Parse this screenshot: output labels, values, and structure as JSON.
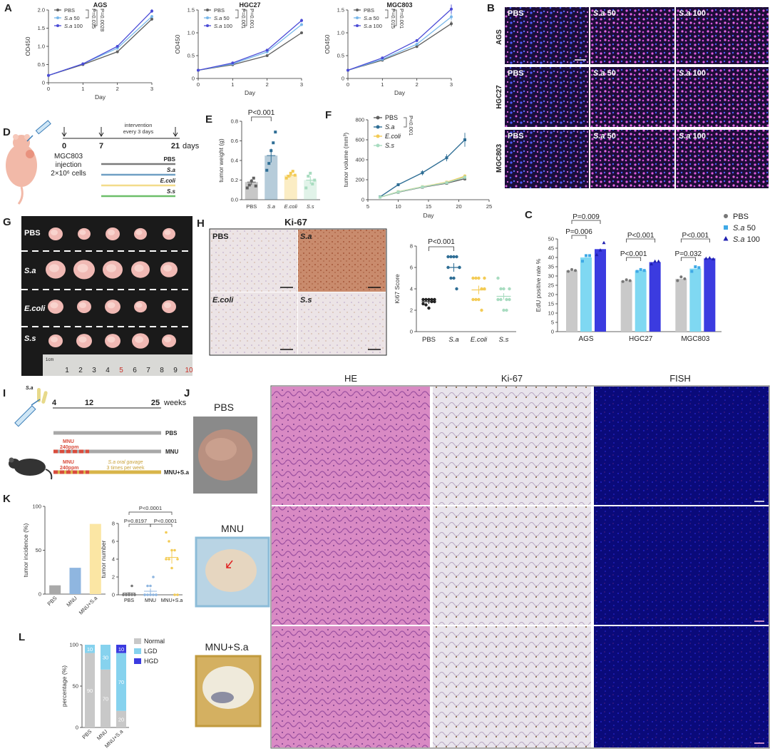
{
  "panels": {
    "A": "A",
    "B": "B",
    "C": "C",
    "D": "D",
    "E": "E",
    "F": "F",
    "G": "G",
    "H": "H",
    "I": "I",
    "J": "J",
    "K": "K",
    "L": "L"
  },
  "colors": {
    "pbs": "#5f5f5f",
    "sa50": "#77b7ea",
    "sa100": "#4b4bd6",
    "sa_teal": "#2f6e95",
    "ecoli": "#f3cb55",
    "ss": "#a8dcc0",
    "c_pbs": "#c9c9c9",
    "c_sa50": "#7fd8f2",
    "c_sa100": "#3b3be0",
    "normal": "#c8c8c8",
    "lgd": "#86d2ee",
    "hgd": "#3b3be0"
  },
  "panelA": {
    "ylabel": "OD450",
    "xlabel": "Day",
    "legend": [
      {
        "pre": "PBS",
        "it": "",
        "post": ""
      },
      {
        "pre": "",
        "it": "S.a",
        "post": " 50"
      },
      {
        "pre": "",
        "it": "S.a",
        "post": " 100"
      }
    ]
  },
  "panelB": {
    "rows": [
      "AGS",
      "HGC27",
      "MGC803"
    ],
    "cols": [
      {
        "pre": "PBS",
        "it": "",
        "post": ""
      },
      {
        "pre": "",
        "it": "S.a",
        "post": " 50"
      },
      {
        "pre": "",
        "it": "S.a",
        "post": " 100"
      }
    ]
  },
  "panelD": {
    "timepoints": [
      "0",
      "7",
      "21"
    ],
    "days_label": "days",
    "intervention": [
      "intervention",
      "every 3 days"
    ],
    "cells": [
      "MGC803",
      "injection",
      "2×10⁶ cells"
    ],
    "groups": [
      "PBS",
      "S.a",
      "E.coli",
      "S.s"
    ]
  },
  "panelG": {
    "groups": [
      "PBS",
      "S.a",
      "E.coli",
      "S.s"
    ],
    "ruler": [
      "1",
      "2",
      "3",
      "4",
      "5",
      "6",
      "7",
      "8",
      "9",
      "10"
    ],
    "ruler_unit": "1cm"
  },
  "panelH": {
    "title": "Ki-67",
    "images": [
      "PBS",
      "S.a",
      "E.coli",
      "S.s"
    ]
  },
  "panelI": {
    "weeks": [
      "4",
      "12",
      "25"
    ],
    "weeks_label": "weeks",
    "mnu": [
      "MNU",
      "240ppm"
    ],
    "gavage": [
      "S.a oral gavage",
      "3 times per week"
    ],
    "bars": [
      "PBS",
      "MNU",
      "MNU+S.a"
    ],
    "bug": "S.a"
  },
  "panelJ": {
    "columns": [
      "HE",
      "Ki-67",
      "FISH"
    ],
    "rows": [
      "PBS",
      "MNU",
      "MNU+S.a"
    ]
  },
  "chart_data": [
    {
      "id": "A-AGS",
      "type": "line",
      "title": "AGS",
      "xlabel": "Day",
      "ylabel": "OD450",
      "x": [
        0,
        1,
        2,
        3
      ],
      "xlim": [
        0,
        3
      ],
      "ylim": [
        0,
        2.0
      ],
      "yticks": [
        "0",
        "0.5",
        "1.0",
        "1.5",
        "2.0"
      ],
      "xticks": [
        "0",
        "1",
        "2",
        "3"
      ],
      "series": [
        {
          "name": "PBS",
          "values": [
            0.2,
            0.5,
            0.85,
            1.75
          ],
          "err": [
            0.01,
            0.02,
            0.03,
            0.05
          ]
        },
        {
          "name": "S.a 50",
          "values": [
            0.2,
            0.52,
            0.95,
            1.82
          ],
          "err": [
            0.01,
            0.02,
            0.04,
            0.04
          ]
        },
        {
          "name": "S.a 100",
          "values": [
            0.2,
            0.52,
            1.0,
            1.97
          ],
          "err": [
            0.01,
            0.02,
            0.03,
            0.05
          ]
        }
      ],
      "annotations": [
        "P=0.035",
        "P=0.0028"
      ]
    },
    {
      "id": "A-HGC27",
      "type": "line",
      "title": "HGC27",
      "xlabel": "Day",
      "ylabel": "OD450",
      "x": [
        0,
        1,
        2,
        3
      ],
      "xlim": [
        0,
        3
      ],
      "ylim": [
        0,
        1.5
      ],
      "yticks": [
        "0",
        "0.5",
        "1.0",
        "1.5"
      ],
      "xticks": [
        "0",
        "1",
        "2",
        "3"
      ],
      "series": [
        {
          "name": "PBS",
          "values": [
            0.18,
            0.3,
            0.5,
            1.0
          ],
          "err": [
            0.01,
            0.01,
            0.02,
            0.02
          ]
        },
        {
          "name": "S.a 50",
          "values": [
            0.18,
            0.32,
            0.58,
            1.18
          ],
          "err": [
            0.01,
            0.01,
            0.02,
            0.03
          ]
        },
        {
          "name": "S.a 100",
          "values": [
            0.18,
            0.34,
            0.62,
            1.27
          ],
          "err": [
            0.01,
            0.01,
            0.02,
            0.04
          ]
        }
      ],
      "annotations": [
        "P=0.001",
        "P=0.001"
      ]
    },
    {
      "id": "A-MGC803",
      "type": "line",
      "title": "MGC803",
      "xlabel": "Day",
      "ylabel": "OD450",
      "x": [
        0,
        1,
        2,
        3
      ],
      "xlim": [
        0,
        3
      ],
      "ylim": [
        0,
        1.5
      ],
      "yticks": [
        "0",
        "0.5",
        "1.0",
        "1.5"
      ],
      "xticks": [
        "0",
        "1",
        "2",
        "3"
      ],
      "series": [
        {
          "name": "PBS",
          "values": [
            0.18,
            0.4,
            0.7,
            1.2
          ],
          "err": [
            0.01,
            0.02,
            0.03,
            0.06
          ]
        },
        {
          "name": "S.a 50",
          "values": [
            0.18,
            0.42,
            0.75,
            1.35
          ],
          "err": [
            0.01,
            0.02,
            0.03,
            0.07
          ]
        },
        {
          "name": "S.a 100",
          "values": [
            0.18,
            0.45,
            0.83,
            1.52
          ],
          "err": [
            0.01,
            0.02,
            0.03,
            0.1
          ]
        }
      ],
      "annotations": [
        "P=0.015",
        "P=0.001"
      ]
    },
    {
      "id": "C",
      "type": "bar",
      "ylabel": "EdU positive rate %",
      "categories": [
        "AGS",
        "HGC27",
        "MGC803"
      ],
      "ylim": [
        0,
        50
      ],
      "yticks": [
        "0",
        "5",
        "10",
        "15",
        "20",
        "25",
        "30",
        "35",
        "40",
        "45",
        "50"
      ],
      "series": [
        {
          "name": "PBS",
          "values": [
            33,
            27.5,
            28.5
          ],
          "points": [
            [
              32.5,
              33.5,
              33
            ],
            [
              27,
              28,
              27.5
            ],
            [
              27.5,
              29.5,
              28.5
            ]
          ]
        },
        {
          "name": "S.a 50",
          "values": [
            40,
            33,
            34
          ],
          "points": [
            [
              38,
              41,
              41
            ],
            [
              32.5,
              33.5,
              33
            ],
            [
              32.5,
              35,
              34.5
            ]
          ]
        },
        {
          "name": "S.a 100",
          "values": [
            44.5,
            37.5,
            39.5
          ],
          "points": [
            [
              41.5,
              44,
              48
            ],
            [
              36.5,
              38,
              38
            ],
            [
              39.5,
              39.8,
              39.2
            ]
          ]
        }
      ],
      "annotations": [
        "P=0.006",
        "P=0.009",
        "P<0.001",
        "P<0.001",
        "P=0.032",
        "P<0.001"
      ],
      "legend": [
        {
          "pre": "PBS",
          "it": "",
          "post": ""
        },
        {
          "pre": "",
          "it": "S.a",
          "post": " 50"
        },
        {
          "pre": "",
          "it": "S.a",
          "post": " 100"
        }
      ]
    },
    {
      "id": "E",
      "type": "bar",
      "ylabel": "tumor weight (g)",
      "categories": [
        "PBS",
        "S.a",
        "E.coli",
        "S.s"
      ],
      "ylim": [
        0,
        0.8
      ],
      "yticks": [
        "0.0",
        "0.2",
        "0.4",
        "0.6",
        "0.8"
      ],
      "values": [
        0.18,
        0.45,
        0.25,
        0.2
      ],
      "err": [
        0.03,
        0.07,
        0.02,
        0.04
      ],
      "points": [
        [
          0.12,
          0.15,
          0.19,
          0.22,
          0.14
        ],
        [
          0.3,
          0.37,
          0.5,
          0.58,
          0.69
        ],
        [
          0.22,
          0.24,
          0.27,
          0.29,
          0.25
        ],
        [
          0.12,
          0.24,
          0.27,
          0.16,
          0.2
        ]
      ],
      "annotations": [
        "P<0.001"
      ]
    },
    {
      "id": "F",
      "type": "line",
      "xlabel": "Day",
      "ylabel": "tumor volume (mm³)",
      "x": [
        7,
        10,
        14,
        18,
        21
      ],
      "xlim": [
        5,
        25
      ],
      "ylim": [
        0,
        800
      ],
      "xticks": [
        "5",
        "10",
        "15",
        "20",
        "25"
      ],
      "yticks": [
        "0",
        "200",
        "400",
        "600",
        "800"
      ],
      "series": [
        {
          "name": "PBS",
          "values": [
            25,
            75,
            125,
            165,
            210
          ],
          "err": [
            5,
            10,
            12,
            15,
            20
          ]
        },
        {
          "name": "S.a",
          "values": [
            28,
            150,
            270,
            420,
            600
          ],
          "err": [
            5,
            15,
            25,
            35,
            70
          ]
        },
        {
          "name": "E.coli",
          "values": [
            25,
            80,
            130,
            175,
            235
          ],
          "err": [
            5,
            10,
            12,
            15,
            20
          ]
        },
        {
          "name": "S.s",
          "values": [
            25,
            78,
            128,
            170,
            225
          ],
          "err": [
            5,
            10,
            12,
            15,
            20
          ]
        }
      ],
      "annotations": [
        "P<0.001"
      ]
    },
    {
      "id": "H-score",
      "type": "scatter",
      "ylabel": "Ki67 Score",
      "categories": [
        "PBS",
        "S.a",
        "E.coli",
        "S.s"
      ],
      "ylim": [
        0,
        8
      ],
      "yticks": [
        "0",
        "2",
        "4",
        "6",
        "8"
      ],
      "means": [
        2.8,
        6.0,
        3.9,
        3.3
      ],
      "err": [
        0.2,
        0.4,
        0.4,
        0.3
      ],
      "points": [
        [
          3,
          3,
          3,
          2.8,
          2.8,
          2.6,
          2.5,
          2.2,
          3,
          3
        ],
        [
          7,
          7,
          7,
          7,
          6,
          6,
          5,
          5,
          4,
          6
        ],
        [
          5,
          5,
          5,
          4,
          4,
          3,
          3,
          3,
          2,
          5
        ],
        [
          5,
          4,
          4,
          3,
          3,
          3,
          3,
          2,
          2,
          4
        ]
      ],
      "annotations": [
        "P<0.001"
      ]
    },
    {
      "id": "K-incidence",
      "type": "bar",
      "ylabel": "tumor incidence (%)",
      "categories": [
        "PBS",
        "MNU",
        "MNU+S.a"
      ],
      "ylim": [
        0,
        100
      ],
      "yticks": [
        "0",
        "50",
        "100"
      ],
      "values": [
        10,
        30,
        80
      ]
    },
    {
      "id": "K-number",
      "type": "scatter",
      "ylabel": "tumor number",
      "categories": [
        "PBS",
        "MNU",
        "MNU+S.a"
      ],
      "ylim": [
        0,
        8
      ],
      "yticks": [
        "0",
        "2",
        "4",
        "6",
        "8"
      ],
      "means": [
        0.2,
        0.4,
        4.2
      ],
      "err": [
        0.1,
        0.3,
        0.7
      ],
      "points": [
        [
          0,
          0,
          0,
          0,
          0,
          0,
          0,
          0,
          1,
          0
        ],
        [
          0,
          0,
          0,
          0,
          0,
          0,
          1,
          1,
          2,
          0
        ],
        [
          7,
          6,
          5,
          5,
          4,
          4,
          4,
          3,
          0,
          0
        ]
      ],
      "annotations": [
        "P<0.0001",
        "P=0.8197",
        "P<0.0001"
      ]
    },
    {
      "id": "L",
      "type": "bar",
      "ylabel": "percentage (%)",
      "categories": [
        "PBS",
        "MNU",
        "MNU+S.a"
      ],
      "ylim": [
        0,
        100
      ],
      "yticks": [
        "0",
        "50",
        "100"
      ],
      "series": [
        {
          "name": "Normal",
          "values": [
            90,
            70,
            20
          ]
        },
        {
          "name": "LGD",
          "values": [
            10,
            30,
            70
          ]
        },
        {
          "name": "HGD",
          "values": [
            0,
            0,
            10
          ]
        }
      ]
    }
  ]
}
